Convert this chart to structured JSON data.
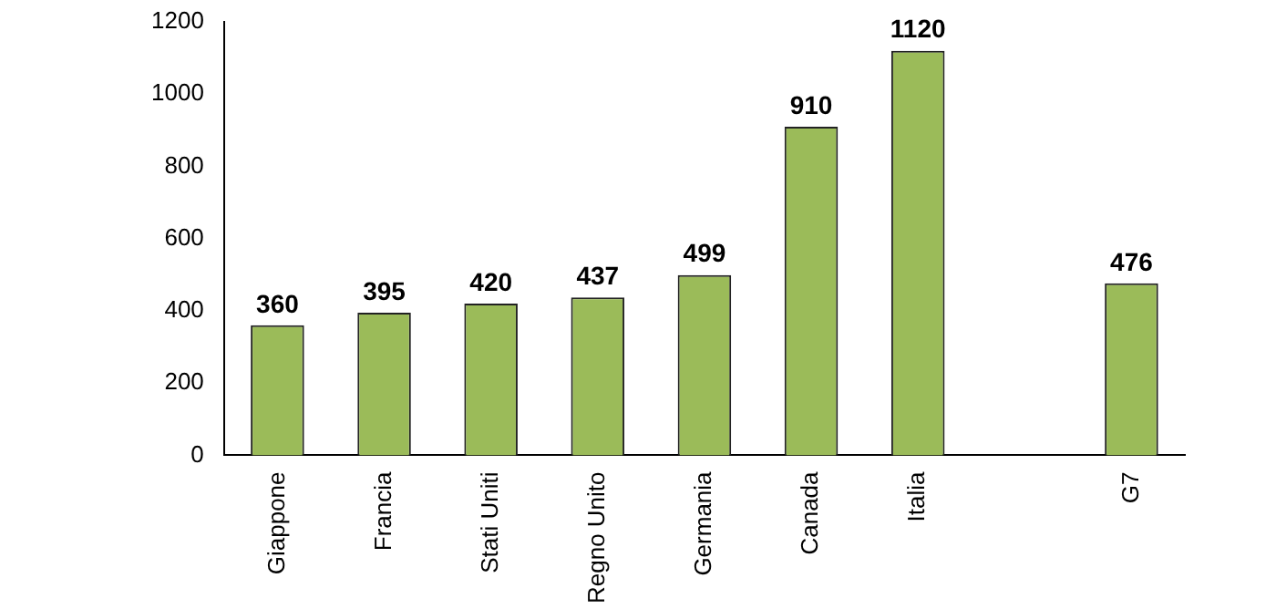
{
  "chart_data": {
    "type": "bar",
    "categories": [
      "Giappone",
      "Francia",
      "Stati Uniti",
      "Regno Unito",
      "Germania",
      "Canada",
      "Italia",
      null,
      "G7"
    ],
    "values": [
      360,
      395,
      420,
      437,
      499,
      910,
      1120,
      null,
      476
    ],
    "color": "#9bbb59",
    "ylim": [
      0,
      1200
    ],
    "yticks": [
      0,
      200,
      400,
      600,
      800,
      1000,
      1200
    ],
    "grid": false,
    "legend": false,
    "data_labels": true
  }
}
